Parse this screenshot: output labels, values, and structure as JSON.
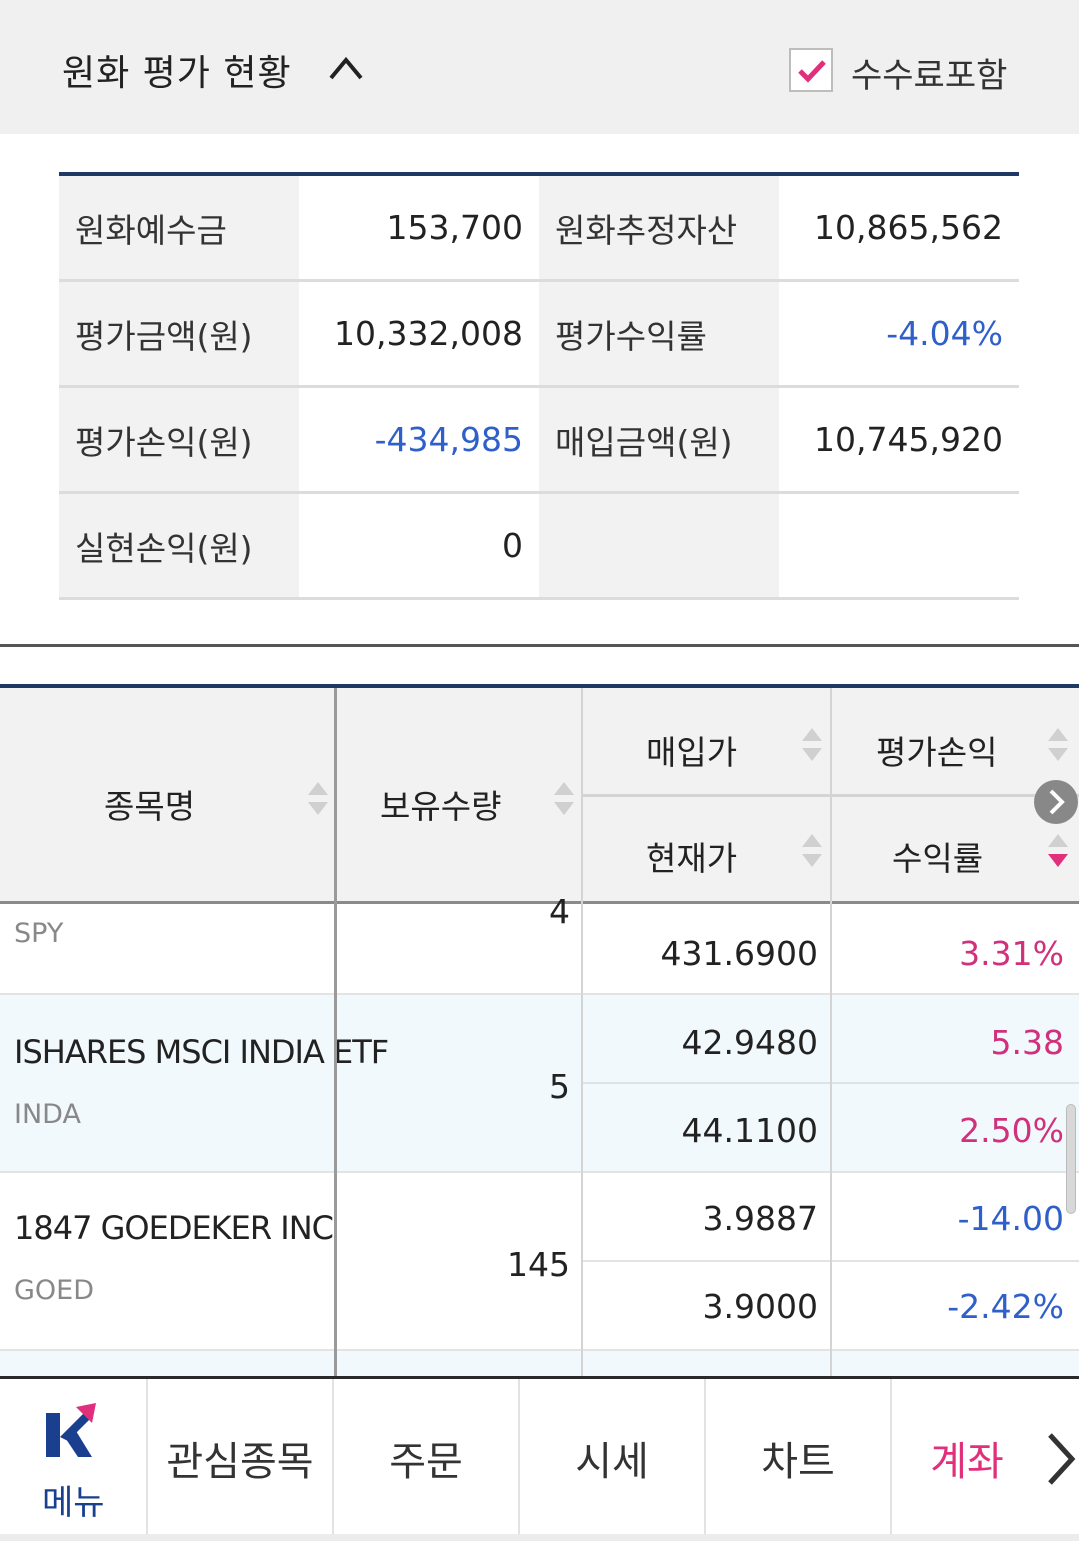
{
  "header": {
    "title": "원화 평가 현황",
    "fee_label": "수수료포함",
    "fee_checked": true
  },
  "summary": {
    "rows": [
      {
        "l1": "원화예수금",
        "v1": "153,700",
        "l2": "원화추정자산",
        "v2": "10,865,562"
      },
      {
        "l1": "평가금액(원)",
        "v1": "10,332,008",
        "l2": "평가수익률",
        "v2": "-4.04%"
      },
      {
        "l1": "평가손익(원)",
        "v1": "-434,985",
        "l2": "매입금액(원)",
        "v2": "10,745,920"
      },
      {
        "l1": "실현손익(원)",
        "v1": "0",
        "l2": "",
        "v2": ""
      }
    ]
  },
  "holdings": {
    "headers": {
      "name": "종목명",
      "qty": "보유수량",
      "buy_price": "매입가",
      "pnl": "평가손익",
      "cur_price": "현재가",
      "rate": "수익률"
    },
    "rows": [
      {
        "name": "",
        "ticker": "SPY",
        "qty": "4",
        "buy_price": "",
        "pnl": "",
        "cur_price": "431.6900",
        "rate": "3.31%"
      },
      {
        "name": "ISHARES MSCI INDIA ETF",
        "ticker": "INDA",
        "qty": "5",
        "buy_price": "42.9480",
        "pnl": "5.38",
        "cur_price": "44.1100",
        "rate": "2.50%"
      },
      {
        "name": "1847 GOEDEKER INC",
        "ticker": "GOED",
        "qty": "145",
        "buy_price": "3.9887",
        "pnl": "-14.00",
        "cur_price": "3.9000",
        "rate": "-2.42%"
      }
    ]
  },
  "nav": {
    "menu": "메뉴",
    "items": [
      "관심종목",
      "주문",
      "시세",
      "차트",
      "계좌"
    ],
    "active": "계좌"
  },
  "colors": {
    "accent_pink": "#e0307c",
    "negative_blue": "#2f5fc8",
    "navy": "#1e3a64"
  }
}
